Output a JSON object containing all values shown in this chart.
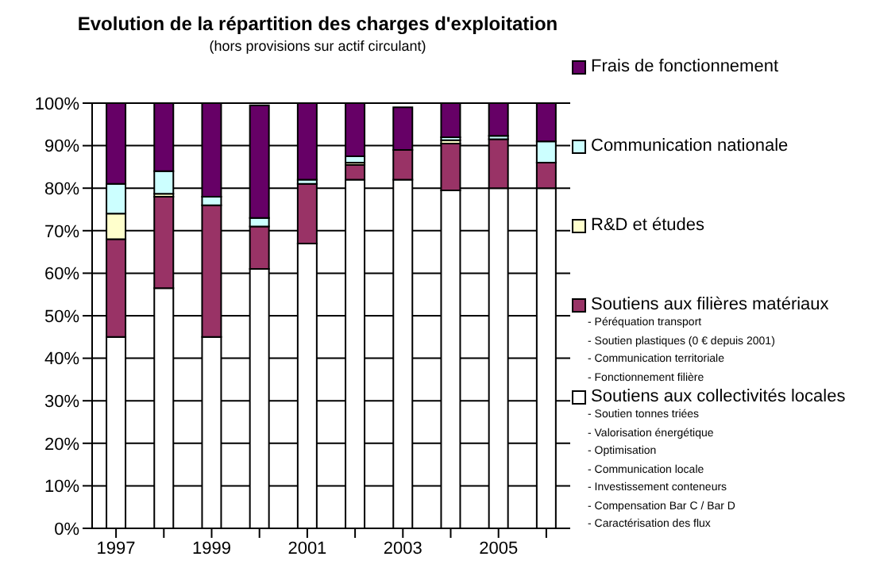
{
  "chart_data": {
    "type": "bar",
    "stacked": true,
    "title": "Evolution de la répartition des charges d'exploitation",
    "subtitle": "(hors provisions sur actif circulant)",
    "categories": [
      "1997",
      null,
      "1999",
      null,
      "2001",
      null,
      "2003",
      null,
      "2005",
      null
    ],
    "series": [
      {
        "name": "Soutiens aux collectivités locales",
        "color": "#ffffff",
        "values": [
          45,
          56.5,
          45,
          61,
          67,
          82,
          82,
          79.5,
          80,
          80
        ]
      },
      {
        "name": "Soutiens aux filières matériaux",
        "color": "#993366",
        "values": [
          23,
          21.5,
          31,
          10,
          14,
          3.5,
          7,
          11,
          11.5,
          6
        ]
      },
      {
        "name": "R&D et études",
        "color": "#ffffcc",
        "values": [
          6,
          0.7,
          0,
          null,
          0,
          0.5,
          null,
          0.8,
          0,
          0
        ]
      },
      {
        "name": "Communication nationale",
        "color": "#ccffff",
        "values": [
          7,
          5.3,
          2,
          2,
          1,
          1.5,
          null,
          0.7,
          0.8,
          5
        ]
      },
      {
        "name": "Frais de fonctionnement",
        "color": "#660066",
        "values": [
          19,
          16,
          22,
          26.5,
          18,
          12.5,
          10,
          8,
          7.7,
          9
        ]
      }
    ],
    "ylim": [
      0,
      100
    ],
    "yticks": [
      {
        "value": 0,
        "label": "0%"
      },
      {
        "value": 10,
        "label": "10%"
      },
      {
        "value": 20,
        "label": "20%"
      },
      {
        "value": 30,
        "label": "30%"
      },
      {
        "value": 40,
        "label": "40%"
      },
      {
        "value": 50,
        "label": "50%"
      },
      {
        "value": 60,
        "label": "60%"
      },
      {
        "value": 70,
        "label": "70%"
      },
      {
        "value": 80,
        "label": "80%"
      },
      {
        "value": 90,
        "label": "90%"
      },
      {
        "value": 100,
        "label": "100%"
      }
    ],
    "grid": "y",
    "legend": "right",
    "annotations": [
      "- Péréquation transport",
      "- Soutien plastiques (0 € depuis 2001)",
      "- Communication territoriale",
      "- Fonctionnement filière",
      "- Soutien tonnes triées",
      "- Valorisation énergétique",
      "- Optimisation",
      "- Communication locale",
      "- Investissement conteneurs",
      "- Compensation Bar C / Bar D",
      "- Caractérisation des flux"
    ]
  }
}
